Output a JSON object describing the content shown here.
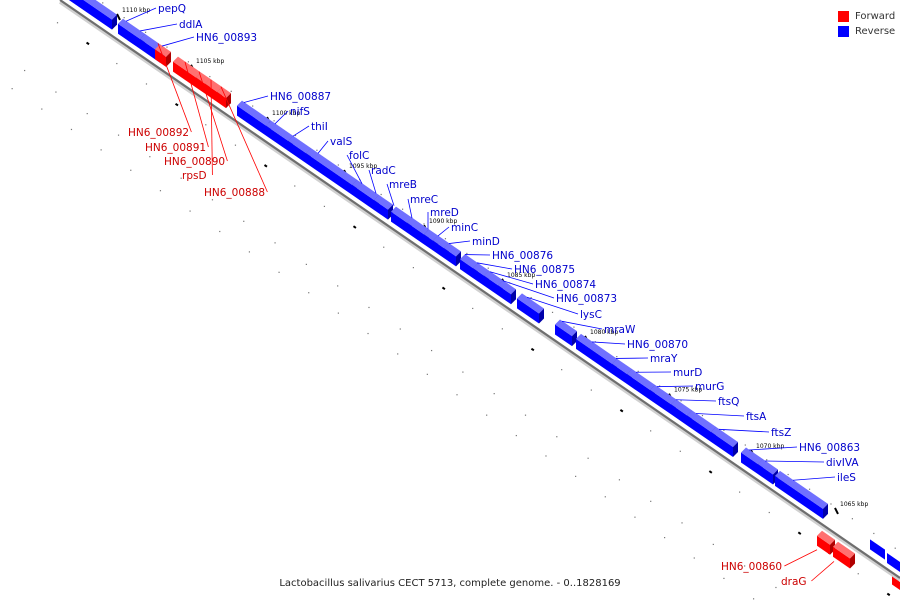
{
  "caption": "Lactobacillus salivarius CECT 5713, complete genome. - 0..1828169",
  "legend": {
    "forward_label": "Forward",
    "reverse_label": "Reverse",
    "forward_color": "#ff0000",
    "reverse_color": "#0000ff"
  },
  "tick_labels": [
    "1110 kbp",
    "1105 kbp",
    "1100 kbp",
    "1095 kbp",
    "1090 kbp",
    "1085 kbp",
    "1080 kbp",
    "1075 kbp",
    "1070 kbp",
    "1065 kbp"
  ],
  "genes": [
    {
      "name": "pepQ",
      "strand": "reverse"
    },
    {
      "name": "ddlA",
      "strand": "reverse"
    },
    {
      "name": "HN6_00893",
      "strand": "reverse"
    },
    {
      "name": "HN6_00892",
      "strand": "forward"
    },
    {
      "name": "HN6_00891",
      "strand": "forward"
    },
    {
      "name": "HN6_00890",
      "strand": "forward"
    },
    {
      "name": "rpsD",
      "strand": "forward"
    },
    {
      "name": "HN6_00888",
      "strand": "forward"
    },
    {
      "name": "HN6_00887",
      "strand": "reverse"
    },
    {
      "name": "nifS",
      "strand": "reverse"
    },
    {
      "name": "thiI",
      "strand": "reverse"
    },
    {
      "name": "valS",
      "strand": "reverse"
    },
    {
      "name": "folC",
      "strand": "reverse"
    },
    {
      "name": "radC",
      "strand": "reverse"
    },
    {
      "name": "mreB",
      "strand": "reverse"
    },
    {
      "name": "mreC",
      "strand": "reverse"
    },
    {
      "name": "mreD",
      "strand": "reverse"
    },
    {
      "name": "minC",
      "strand": "reverse"
    },
    {
      "name": "minD",
      "strand": "reverse"
    },
    {
      "name": "HN6_00876",
      "strand": "reverse"
    },
    {
      "name": "HN6_00875",
      "strand": "reverse"
    },
    {
      "name": "HN6_00874",
      "strand": "reverse"
    },
    {
      "name": "HN6_00873",
      "strand": "reverse"
    },
    {
      "name": "lysC",
      "strand": "reverse"
    },
    {
      "name": "mraW",
      "strand": "reverse"
    },
    {
      "name": "HN6_00870",
      "strand": "reverse"
    },
    {
      "name": "mraY",
      "strand": "reverse"
    },
    {
      "name": "murD",
      "strand": "reverse"
    },
    {
      "name": "murG",
      "strand": "reverse"
    },
    {
      "name": "ftsQ",
      "strand": "reverse"
    },
    {
      "name": "ftsA",
      "strand": "reverse"
    },
    {
      "name": "ftsZ",
      "strand": "reverse"
    },
    {
      "name": "HN6_00863",
      "strand": "reverse"
    },
    {
      "name": "divIVA",
      "strand": "reverse"
    },
    {
      "name": "ileS",
      "strand": "reverse"
    },
    {
      "name": "HN6_00860",
      "strand": "forward"
    },
    {
      "name": "draG",
      "strand": "forward"
    }
  ]
}
